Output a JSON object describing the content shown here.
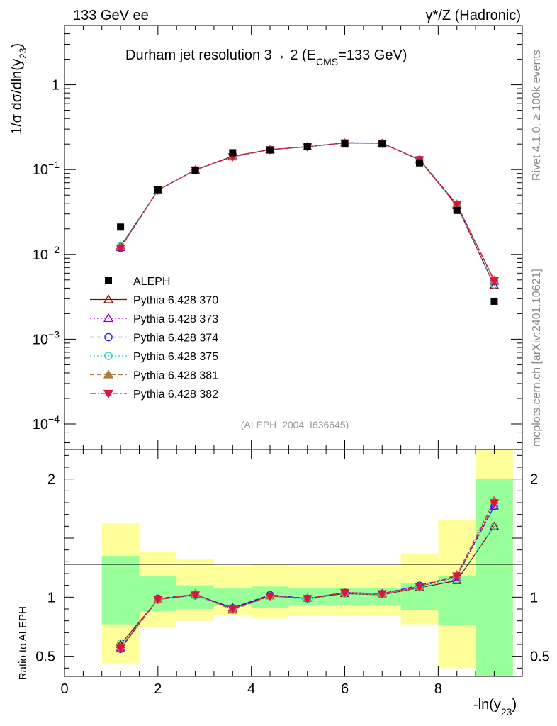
{
  "header": {
    "left": "133 GeV ee",
    "right": "γ*/Z (Hadronic)"
  },
  "side_labels": {
    "rivet": "Rivet 4.1.0, ≥ 100k events",
    "mcplots": "mcplots.cern.ch [arXiv:2401.10621]"
  },
  "chart_data": [
    {
      "panel": "main",
      "type": "line",
      "title": "Durham jet resolution 3→ 2 (E_CMS=133 GeV)",
      "title_parts": {
        "main": "Durham jet resolution 3",
        "arrow": "→",
        "mid": " 2 (E",
        "sub": "CMS",
        "tail": "=133 GeV)"
      },
      "ylabel": "1/σ dσ/dln(y_23)",
      "ylabel_parts": {
        "main": "1/σ  dσ/dln(y",
        "sub": "23",
        "tail": ")"
      },
      "yscale": "log",
      "ylim": [
        5e-05,
        5
      ],
      "xlim": [
        0,
        9.8
      ],
      "analysis_label": "(ALEPH_2004_I636645)",
      "ytick_labels": [
        {
          "value": 1,
          "base": "1",
          "exp": ""
        },
        {
          "value": 0.1,
          "base": "10",
          "exp": "−1"
        },
        {
          "value": 0.01,
          "base": "10",
          "exp": "−2"
        },
        {
          "value": 0.001,
          "base": "10",
          "exp": "−3"
        },
        {
          "value": 0.0001,
          "base": "10",
          "exp": "−4"
        }
      ],
      "x": [
        1.2,
        2.0,
        2.8,
        3.6,
        4.4,
        5.2,
        6.0,
        6.8,
        7.6,
        8.4,
        9.2
      ],
      "data": {
        "name": "ALEPH",
        "values": [
          0.021,
          0.058,
          0.097,
          0.158,
          0.17,
          0.188,
          0.2,
          0.2,
          0.12,
          0.033,
          0.0028
        ]
      },
      "series": [
        {
          "name": "Pythia 6.428 370",
          "color": "#8b0000",
          "marker": "triangle-open",
          "dash": "solid",
          "values": [
            0.0125,
            0.057,
            0.099,
            0.144,
            0.172,
            0.186,
            0.206,
            0.204,
            0.13,
            0.0375,
            0.0043
          ]
        },
        {
          "name": "Pythia 6.428 373",
          "color": "#9400d3",
          "marker": "triangle-open",
          "dash": "dotted",
          "values": [
            0.012,
            0.057,
            0.0985,
            0.142,
            0.172,
            0.186,
            0.207,
            0.205,
            0.131,
            0.0385,
            0.0048
          ]
        },
        {
          "name": "Pythia 6.428 374",
          "color": "#2020dd",
          "marker": "circle-open",
          "dash": "dashed",
          "values": [
            0.0118,
            0.0572,
            0.099,
            0.143,
            0.1725,
            0.1865,
            0.2075,
            0.2055,
            0.1315,
            0.0388,
            0.0049
          ]
        },
        {
          "name": "Pythia 6.428 375",
          "color": "#20d0c0",
          "marker": "circle-open",
          "dash": "dotted",
          "values": [
            0.0126,
            0.0568,
            0.098,
            0.1425,
            0.1715,
            0.1855,
            0.2065,
            0.2045,
            0.1305,
            0.0378,
            0.0044
          ]
        },
        {
          "name": "Pythia 6.428 381",
          "color": "#b07840",
          "marker": "triangle-filled",
          "dash": "dashed",
          "values": [
            0.0122,
            0.0566,
            0.0998,
            0.1405,
            0.1718,
            0.1862,
            0.2068,
            0.2048,
            0.1308,
            0.0392,
            0.005
          ]
        },
        {
          "name": "Pythia 6.428 382",
          "color": "#dc143c",
          "marker": "triangle-down-filled",
          "dash": "dashdot",
          "values": [
            0.0119,
            0.0569,
            0.0993,
            0.1418,
            0.1722,
            0.1858,
            0.2072,
            0.2052,
            0.1312,
            0.039,
            0.0049
          ]
        }
      ]
    },
    {
      "panel": "ratio",
      "type": "line",
      "ylabel": "Ratio to ALEPH",
      "xlabel": "-ln(y_23)",
      "xlabel_parts": {
        "main": "-ln(y",
        "sub": "23",
        "tail": ")"
      },
      "ylim": [
        0.33,
        2.25
      ],
      "xlim": [
        0,
        9.8
      ],
      "xticks": [
        0,
        2,
        4,
        6,
        8
      ],
      "yticks": [
        0.5,
        1,
        2
      ],
      "bands": {
        "edges": [
          0.8,
          1.6,
          2.4,
          3.2,
          4.0,
          4.8,
          5.6,
          6.4,
          7.2,
          8.0,
          8.8,
          9.6
        ],
        "inner": [
          [
            0.77,
            1.35
          ],
          [
            0.88,
            1.18
          ],
          [
            0.9,
            1.1
          ],
          [
            0.93,
            1.08
          ],
          [
            0.91,
            1.09
          ],
          [
            0.93,
            1.08
          ],
          [
            0.93,
            1.08
          ],
          [
            0.93,
            1.08
          ],
          [
            0.89,
            1.12
          ],
          [
            0.76,
            1.18
          ],
          [
            0.33,
            2.0
          ]
        ],
        "outer": [
          [
            0.44,
            1.63
          ],
          [
            0.75,
            1.38
          ],
          [
            0.8,
            1.32
          ],
          [
            0.85,
            1.26
          ],
          [
            0.82,
            1.28
          ],
          [
            0.84,
            1.27
          ],
          [
            0.84,
            1.27
          ],
          [
            0.84,
            1.27
          ],
          [
            0.77,
            1.37
          ],
          [
            0.4,
            1.65
          ],
          [
            0.33,
            2.25
          ]
        ]
      },
      "series": [
        {
          "name": "Pythia 6.428 370",
          "values": [
            0.6,
            0.98,
            1.02,
            0.91,
            1.01,
            0.99,
            1.03,
            1.02,
            1.08,
            1.14,
            1.6
          ]
        },
        {
          "name": "Pythia 6.428 373",
          "values": [
            0.57,
            0.98,
            1.02,
            0.9,
            1.01,
            0.99,
            1.04,
            1.03,
            1.09,
            1.17,
            1.77
          ]
        },
        {
          "name": "Pythia 6.428 374",
          "values": [
            0.56,
            0.99,
            1.02,
            0.91,
            1.02,
            0.99,
            1.04,
            1.03,
            1.1,
            1.18,
            1.77
          ]
        },
        {
          "name": "Pythia 6.428 375",
          "values": [
            0.61,
            0.98,
            1.01,
            0.9,
            1.01,
            0.98,
            1.03,
            1.02,
            1.08,
            1.15,
            1.6
          ]
        },
        {
          "name": "Pythia 6.428 381",
          "values": [
            0.58,
            0.98,
            1.03,
            0.89,
            1.01,
            0.99,
            1.04,
            1.02,
            1.09,
            1.19,
            1.82
          ]
        },
        {
          "name": "Pythia 6.428 382",
          "values": [
            0.57,
            0.98,
            1.02,
            0.9,
            1.01,
            0.99,
            1.04,
            1.03,
            1.09,
            1.18,
            1.8
          ]
        }
      ]
    }
  ]
}
